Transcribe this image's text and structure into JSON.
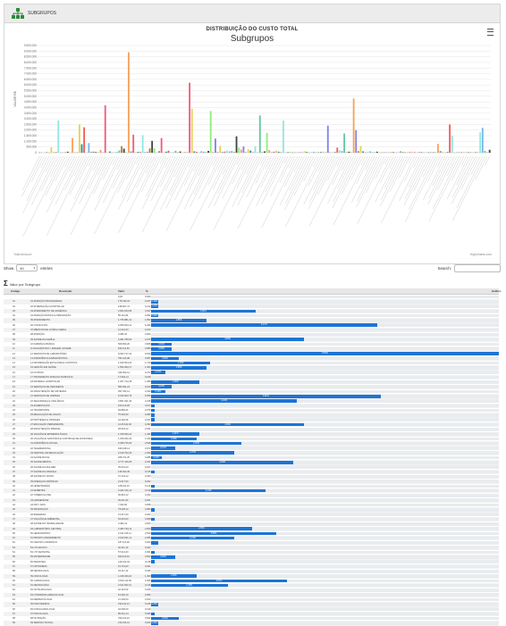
{
  "panel": {
    "title": "SUBGRUPOS"
  },
  "chart": {
    "menu_icon": "hamburger-icon",
    "credits": "Total Amount",
    "export_credit": "Highcharts.com"
  },
  "chart_data": {
    "type": "bar",
    "title": "DISTRIBUIÇÃO DO CUSTO TOTAL",
    "subtitle": "Subgrupos",
    "ylabel": "VALOR R$",
    "ylim": [
      0,
      9500000
    ],
    "yticks": [
      "0",
      "500.000",
      "1.000.000",
      "1.500.000",
      "2.000.000",
      "2.500.000",
      "3.000.000",
      "3.500.000",
      "4.000.000",
      "4.500.000",
      "5.000.000",
      "5.500.000",
      "6.000.000",
      "6.500.000",
      "7.000.000",
      "7.500.000",
      "8.000.000",
      "8.500.000",
      "9.000.000",
      "9.500.000"
    ],
    "grid": true,
    "legend": "none",
    "values": [
      20000,
      35000,
      10000,
      55000,
      15000,
      480000,
      20000,
      60000,
      2850000,
      35000,
      25000,
      40000,
      90000,
      20000,
      1300000,
      15000,
      30000,
      2500000,
      750000,
      2250000,
      10000,
      850000,
      90000,
      100000,
      55000,
      40000,
      250000,
      25000,
      4200000,
      15000,
      110000,
      20000,
      50000,
      65000,
      200000,
      580000,
      360000,
      40000,
      8900000,
      120000,
      1600000,
      50000,
      80000,
      60000,
      1550000,
      70000,
      90000,
      380000,
      1050000,
      380000,
      20000,
      150000,
      1300000,
      30000,
      90000,
      180000,
      45000,
      40000,
      180000,
      40000,
      110000,
      25000,
      70000,
      35000,
      6200000,
      3900000,
      120000,
      75000,
      30000,
      130000,
      90000,
      40000,
      160000,
      3700000,
      70000,
      1250000,
      50000,
      600000,
      50000,
      100000,
      200000,
      120000,
      150000,
      50000,
      1450000,
      450000,
      280000,
      550000,
      40000,
      300000,
      190000,
      40000,
      570000,
      25000,
      3300000,
      45000,
      120000,
      1750000,
      230000,
      35000,
      95000,
      190000,
      90000,
      45000,
      2850000,
      20000,
      80000,
      30000,
      15000,
      60000,
      35000,
      45000,
      25000,
      140000,
      70000,
      20000,
      60000,
      85000,
      30000,
      40000,
      45000,
      100000,
      35000,
      2400000,
      30000,
      25000,
      55000,
      450000,
      230000,
      150000,
      1700000,
      30000,
      90000,
      60000,
      4800000,
      2000000,
      140000,
      600000,
      120000,
      30000,
      60000,
      120000,
      45000,
      25000,
      90000,
      30000,
      50000,
      40000,
      20000,
      55000,
      30000,
      70000,
      40000,
      25000,
      130000,
      60000,
      20000,
      45000,
      90000,
      30000,
      50000,
      25000,
      40000,
      60000,
      45000,
      20000,
      70000,
      30000,
      35000,
      50000,
      780000,
      150000,
      30000,
      40000,
      60000,
      2500000,
      1500000,
      20000,
      40000,
      30000,
      25000,
      50000,
      45000,
      60000,
      30000,
      40000,
      50000,
      25000,
      1800000,
      2200000,
      160000,
      20000,
      260000
    ]
  },
  "controls": {
    "show_label": "Show",
    "entries_value": "40",
    "entries_label": "entries",
    "search_label": "Search:"
  },
  "table": {
    "title": "Valor por Subgrupo",
    "columns": [
      "Código",
      "Descrição",
      "Valor",
      "%",
      "Gráfico"
    ],
    "rows": [
      {
        "code": "",
        "desc": "",
        "value": "0,00",
        "pct": "0,000 %",
        "bar_fraction": 0,
        "bar_label": ""
      },
      {
        "code": "01",
        "desc": "01 ATENÇÃO PROGRAMADA",
        "value": "175.333,04",
        "pct": "0,187 %",
        "bar_fraction": 0.02,
        "bar_label": "0,19%"
      },
      {
        "code": "02",
        "desc": "02 INTERNAÇÃO HOSPITALAR",
        "value": "198.827,72",
        "pct": "0,212 %",
        "bar_fraction": 0.02,
        "bar_label": "0,21%"
      },
      {
        "code": "03",
        "desc": "03 ATENDIMENTO DE URGÊNCIA",
        "value": "2.833.163,96",
        "pct": "3,023 %",
        "bar_fraction": 0.3,
        "bar_label": "3,02%"
      },
      {
        "code": "04",
        "desc": "04 ATENÇÃO BÁSICA E PREVENÇÃO",
        "value": "85.112,84",
        "pct": "0,091 %",
        "bar_fraction": 0.02,
        "bar_label": "0,09%"
      },
      {
        "code": "05",
        "desc": "05 ATENDIMENTO",
        "value": "1.735.881,14",
        "pct": "1,852 %",
        "bar_fraction": 0.16,
        "bar_label": "1,85%"
      },
      {
        "code": "06",
        "desc": "06 CONSULTAS",
        "value": "6.059.833,14",
        "pct": "6,466 %",
        "bar_fraction": 0.65,
        "bar_label": "6,47%"
      },
      {
        "code": "07",
        "desc": "07 MÉDICOS DE CLÍNICA GERAL",
        "value": "12.321,00",
        "pct": "0,013 %",
        "bar_fraction": 0,
        "bar_label": ""
      },
      {
        "code": "08",
        "desc": "08 ATENÇÃO",
        "value": "3.385,42",
        "pct": "0,004 %",
        "bar_fraction": 0,
        "bar_label": ""
      },
      {
        "code": "09",
        "desc": "09 SAÚDE DA FAMÍLIA",
        "value": "4.381.789,00",
        "pct": "4,675 %",
        "bar_fraction": 0.44,
        "bar_label": "4,68%"
      },
      {
        "code": "10",
        "desc": "10 FARMÁCIA BÁSICA",
        "value": "569.830,26",
        "pct": "0,608 %",
        "bar_fraction": 0.06,
        "bar_label": "0,61%"
      },
      {
        "code": "11",
        "desc": "11 DIAGNÓSTICO / IMAGEM / EXAME",
        "value": "643.113,52",
        "pct": "0,686 %",
        "bar_fraction": 0.06,
        "bar_label": "0,69%"
      },
      {
        "code": "12",
        "desc": "12 SERVIÇOS DE LABORATÓRIO",
        "value": "8.933.717,44",
        "pct": "9,533 %",
        "bar_fraction": 1.0,
        "bar_label": "9,53%"
      },
      {
        "code": "13",
        "desc": "13 ASSISTÊNCIA FARMACÊUTICA",
        "value": "784.102,98",
        "pct": "0,837 %",
        "bar_fraction": 0.08,
        "bar_label": "0,84%"
      },
      {
        "code": "14",
        "desc": "14 INFORMAÇÃO EM SAÚDE E LOGÍSTICA",
        "value": "1.620.564,02",
        "pct": "1,729 %",
        "bar_fraction": 0.17,
        "bar_label": "1,73%"
      },
      {
        "code": "15",
        "desc": "15 GESTÃO EM SAÚDE",
        "value": "1.550.300,17",
        "pct": "1,654 %",
        "bar_fraction": 0.16,
        "bar_label": "1,65%"
      },
      {
        "code": "16",
        "desc": "16 OUTROS",
        "value": "349.452,14",
        "pct": "0,373 %",
        "bar_fraction": 0.04,
        "bar_label": "0,37%"
      },
      {
        "code": "17",
        "desc": "17 TRATAMENTO FORA DO DOMICÍLIO",
        "value": "17.093,14",
        "pct": "0,018 %",
        "bar_fraction": 0,
        "bar_label": ""
      },
      {
        "code": "18",
        "desc": "18 MATERIAL HOSPITALAR",
        "value": "1.367.712,28",
        "pct": "1,459 %",
        "bar_fraction": 0.14,
        "bar_label": "1,46%"
      },
      {
        "code": "19",
        "desc": "19 SERVIÇOS DE TERCEIROS",
        "value": "580.091,24",
        "pct": "0,619 %",
        "bar_fraction": 0.06,
        "bar_label": "0,62%"
      },
      {
        "code": "20",
        "desc": "20 MANUTENÇÃO DE SISTEMAS",
        "value": "397.782,14",
        "pct": "0,424 %",
        "bar_fraction": 0.04,
        "bar_label": "0,42%"
      },
      {
        "code": "21",
        "desc": "21 SERVIÇOS DE LIMPEZA",
        "value": "6.193.002,76",
        "pct": "6,608 %",
        "bar_fraction": 0.66,
        "bar_label": "6,61%"
      },
      {
        "code": "22",
        "desc": "22 SEGURANÇA E VIGILÂNCIA",
        "value": "3.897.021,30",
        "pct": "4,158 %",
        "bar_fraction": 0.42,
        "bar_label": "4,16%"
      },
      {
        "code": "23",
        "desc": "23 ALIMENTAÇÃO",
        "value": "100.113,08",
        "pct": "0,107 %",
        "bar_fraction": 0.01,
        "bar_label": ""
      },
      {
        "code": "24",
        "desc": "24 TRANSPORTE",
        "value": "69.882,61",
        "pct": "0,075 %",
        "bar_fraction": 0.01,
        "bar_label": ""
      },
      {
        "code": "25",
        "desc": "25 REGULAÇÃO DE VAGAS",
        "value": "75.302,30",
        "pct": "0,080 %",
        "bar_fraction": 0.01,
        "bar_label": ""
      },
      {
        "code": "26",
        "desc": "26 PRÓTESES E ÓRTESES",
        "value": "44.118,09",
        "pct": "0,047 %",
        "bar_fraction": 0.01,
        "bar_label": ""
      },
      {
        "code": "27",
        "desc": "27 EDUCAÇÃO PERMANENTE",
        "value": "4.116.612,02",
        "pct": "4,393 %",
        "bar_fraction": 0.44,
        "bar_label": "4,39%"
      },
      {
        "code": "28",
        "desc": "28 MANUTENÇÃO PREDIAL",
        "value": "28.603,12",
        "pct": "0,031 %",
        "bar_fraction": 0,
        "bar_label": ""
      },
      {
        "code": "29",
        "desc": "29 VIGILÂNCIA EPIDEMIOLÓGICA",
        "value": "1.318.090,22",
        "pct": "1,406 %",
        "bar_fraction": 0.14,
        "bar_label": "1,41%"
      },
      {
        "code": "30",
        "desc": "30 VIGILÂNCIA SANITÁRIA E CONTROLE DE ZOONOSES",
        "value": "1.250.631,82",
        "pct": "1,334 %",
        "bar_fraction": 0.13,
        "bar_label": "1,33%"
      },
      {
        "code": "31",
        "desc": "31 ASSISTÊNCIA SOCIAL",
        "value": "2.368.715,00",
        "pct": "2,528 %",
        "bar_fraction": 0.26,
        "bar_label": "2,53%"
      },
      {
        "code": "32",
        "desc": "32 TELEMEDICINA",
        "value": "630.918,14",
        "pct": "0,673 %",
        "bar_fraction": 0.07,
        "bar_label": "0,67%"
      },
      {
        "code": "33",
        "desc": "33 CENTRAL DE REGULAÇÃO",
        "value": "2.219.752,26",
        "pct": "2,369 %",
        "bar_fraction": 0.24,
        "bar_label": "2,37%"
      },
      {
        "code": "34",
        "desc": "34 SAÚDE BUCAL",
        "value": "268.371,26",
        "pct": "0,286 %",
        "bar_fraction": 0.03,
        "bar_label": "0,29%"
      },
      {
        "code": "35",
        "desc": "35 SAÚDE MENTAL",
        "value": "3.777.416,00",
        "pct": "4,031 %",
        "bar_fraction": 0.41,
        "bar_label": "4,03%"
      },
      {
        "code": "36",
        "desc": "36 SAÚDE DA MULHER",
        "value": "25.001,00",
        "pct": "0,027 %",
        "bar_fraction": 0,
        "bar_label": ""
      },
      {
        "code": "37",
        "desc": "37 SAÚDE DA CRIANÇA",
        "value": "136.042,39",
        "pct": "0,145 %",
        "bar_fraction": 0.01,
        "bar_label": ""
      },
      {
        "code": "38",
        "desc": "38 SAÚDE DO IDOSO",
        "value": "37.143,12",
        "pct": "0,040 %",
        "bar_fraction": 0,
        "bar_label": ""
      },
      {
        "code": "39",
        "desc": "39 DOENÇAS CRÔNICAS",
        "value": "21.017,00",
        "pct": "0,022 %",
        "bar_fraction": 0,
        "bar_label": ""
      },
      {
        "code": "40",
        "desc": "40 HIPERTENSÃO",
        "value": "108.911,10",
        "pct": "0,116 %",
        "bar_fraction": 0.01,
        "bar_label": ""
      },
      {
        "code": "41",
        "desc": "41 DIABETES",
        "value": "2.942.131,14",
        "pct": "3,139 %",
        "bar_fraction": 0.33,
        "bar_label": "3,14%"
      },
      {
        "code": "42",
        "desc": "42 TUBERCULOSE",
        "value": "30.822,12",
        "pct": "0,033 %",
        "bar_fraction": 0,
        "bar_label": ""
      },
      {
        "code": "43",
        "desc": "43 HANSENÍASE",
        "value": "29.211,00",
        "pct": "0,031 %",
        "bar_fraction": 0,
        "bar_label": ""
      },
      {
        "code": "44",
        "desc": "44 DST / AIDS",
        "value": "7.033,00",
        "pct": "0,008 %",
        "bar_fraction": 0,
        "bar_label": ""
      },
      {
        "code": "45",
        "desc": "45 IMUNIZAÇÃO",
        "value": "79.028,12",
        "pct": "0,084 %",
        "bar_fraction": 0.01,
        "bar_label": ""
      },
      {
        "code": "46",
        "desc": "46 ENDEMIAS",
        "value": "21.017,00",
        "pct": "0,022 %",
        "bar_fraction": 0,
        "bar_label": ""
      },
      {
        "code": "47",
        "desc": "47 VIGILÂNCIA AMBIENTAL",
        "value": "63.331,00",
        "pct": "0,068 %",
        "bar_fraction": 0.01,
        "bar_label": ""
      },
      {
        "code": "48",
        "desc": "48 SAÚDE DO TRABALHADOR",
        "value": "3.384,14",
        "pct": "0,004 %",
        "bar_fraction": 0,
        "bar_label": ""
      },
      {
        "code": "49",
        "desc": "49 LABORATÓRIO CENTRAL",
        "value": "2.483.730,12",
        "pct": "2,650 %",
        "bar_fraction": 0.29,
        "bar_label": "2,65%"
      },
      {
        "code": "50",
        "desc": "50 HEMOCENTRO",
        "value": "3.311.015,11",
        "pct": "3,533 %",
        "bar_fraction": 0.36,
        "bar_label": "3,53%"
      },
      {
        "code": "51",
        "desc": "51 PRONTO ATENDIMENTO",
        "value": "2.160.021,12",
        "pct": "2,305 %",
        "bar_fraction": 0.24,
        "bar_label": "2,31%"
      },
      {
        "code": "52",
        "desc": "52 CENTRO CIRÚRGICO",
        "value": "187.110,00",
        "pct": "0,200 %",
        "bar_fraction": 0.02,
        "bar_label": ""
      },
      {
        "code": "53",
        "desc": "53 UTI ADULTO",
        "value": "40.211,10",
        "pct": "0,043 %",
        "bar_fraction": 0,
        "bar_label": ""
      },
      {
        "code": "54",
        "desc": "54 UTI NEONATAL",
        "value": "57.014,00",
        "pct": "0,061 %",
        "bar_fraction": 0.01,
        "bar_label": ""
      },
      {
        "code": "55",
        "desc": "55 MATERNIDADE",
        "value": "620.110,32",
        "pct": "0,662 %",
        "bar_fraction": 0.07,
        "bar_label": "0,66%"
      },
      {
        "code": "56",
        "desc": "56 PEDIATRIA",
        "value": "129.312,04",
        "pct": "0,138 %",
        "bar_fraction": 0.01,
        "bar_label": ""
      },
      {
        "code": "57",
        "desc": "57 ORTOPEDIA",
        "value": "19.731,00",
        "pct": "0,021 %",
        "bar_fraction": 0,
        "bar_label": ""
      },
      {
        "code": "58",
        "desc": "58 NEFROLOGIA",
        "value": "33.117,12",
        "pct": "0,035 %",
        "bar_fraction": 0,
        "bar_label": ""
      },
      {
        "code": "59",
        "desc": "59 ONCOLOGIA",
        "value": "1.218.430,22",
        "pct": "1,300 %",
        "bar_fraction": 0.13,
        "bar_label": "1,30%"
      },
      {
        "code": "60",
        "desc": "60 CARDIOLOGIA",
        "value": "3.810.112,00",
        "pct": "4,066 %",
        "bar_fraction": 0.39,
        "bar_label": "4,07%"
      },
      {
        "code": "61",
        "desc": "61 NEUROLOGIA",
        "value": "2.011.002,14",
        "pct": "2,146 %",
        "bar_fraction": 0.22,
        "bar_label": "2,15%"
      },
      {
        "code": "62",
        "desc": "62 OFTALMOLOGIA",
        "value": "42.110,00",
        "pct": "0,045 %",
        "bar_fraction": 0,
        "bar_label": ""
      },
      {
        "code": "63",
        "desc": "63 OTORRINOLARINGOLOGIA",
        "value": "51.330,10",
        "pct": "0,055 %",
        "bar_fraction": 0,
        "bar_label": ""
      },
      {
        "code": "64",
        "desc": "64 DERMATOLOGIA",
        "value": "21.100,00",
        "pct": "0,023 %",
        "bar_fraction": 0,
        "bar_label": ""
      },
      {
        "code": "65",
        "desc": "65 FISIOTERAPIA",
        "value": "230.211,14",
        "pct": "0,246 %",
        "bar_fraction": 0.02,
        "bar_label": "0,25%"
      },
      {
        "code": "66",
        "desc": "66 FONOAUDIOLOGIA",
        "value": "18.200,00",
        "pct": "0,019 %",
        "bar_fraction": 0,
        "bar_label": ""
      },
      {
        "code": "67",
        "desc": "67 PSICOLOGIA",
        "value": "89.441,14",
        "pct": "0,095 %",
        "bar_fraction": 0.01,
        "bar_label": ""
      },
      {
        "code": "68",
        "desc": "68 NUTRIÇÃO",
        "value": "780.110,22",
        "pct": "0,832 %",
        "bar_fraction": 0.08,
        "bar_label": "0,83%"
      },
      {
        "code": "69",
        "desc": "69 SERVIÇO SOCIAL",
        "value": "210.312,14",
        "pct": "0,224 %",
        "bar_fraction": 0.02,
        "bar_label": "0,22%"
      }
    ]
  }
}
